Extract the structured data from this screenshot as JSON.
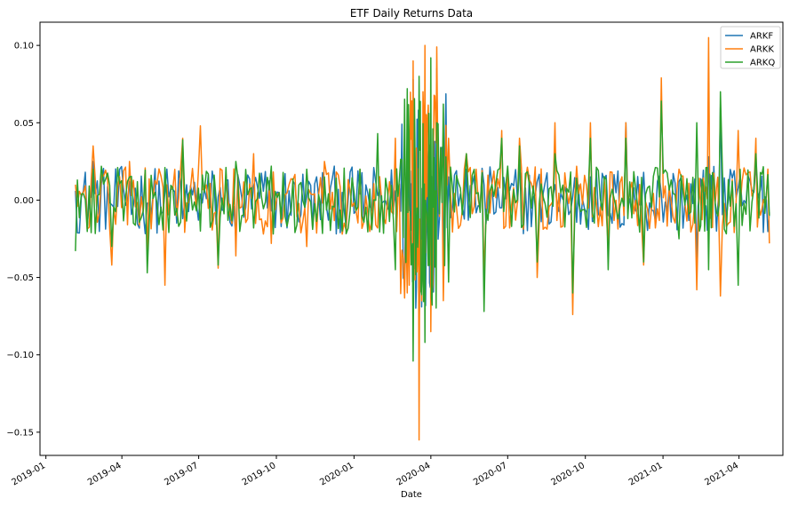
{
  "chart_data": {
    "type": "line",
    "title": "ETF Daily Returns Data",
    "xlabel": "Date",
    "ylabel": "",
    "xlim": [
      "2018-12-25",
      "2021-05-23"
    ],
    "ylim": [
      -0.165,
      0.115
    ],
    "yticks": [
      0.1,
      0.05,
      0.0,
      -0.05,
      -0.1,
      -0.15
    ],
    "ytick_labels": [
      "0.10",
      "0.05",
      "0.00",
      "−0.05",
      "−0.10",
      "−0.15"
    ],
    "xticks": [
      "2019-01-01",
      "2019-04-01",
      "2019-07-01",
      "2019-10-01",
      "2020-01-01",
      "2020-04-01",
      "2020-07-01",
      "2020-10-01",
      "2021-01-01",
      "2021-04-01"
    ],
    "xtick_labels": [
      "2019-01",
      "2019-04",
      "2019-07",
      "2019-10",
      "2020-01",
      "2020-04",
      "2020-07",
      "2020-10",
      "2021-01",
      "2021-04"
    ],
    "legend_position": "top-right",
    "grid": false,
    "series": [
      {
        "name": "ARKF",
        "color": "#1f77b4",
        "x": [
          "2019-02-05",
          "2019-02-26",
          "2019-03-20",
          "2019-04-10",
          "2019-05-01",
          "2019-05-22",
          "2019-06-12",
          "2019-07-03",
          "2019-07-24",
          "2019-08-14",
          "2019-09-04",
          "2019-09-25",
          "2019-10-16",
          "2019-11-06",
          "2019-11-27",
          "2019-12-18",
          "2020-01-08",
          "2020-01-29",
          "2020-02-19",
          "2020-03-04",
          "2020-03-11",
          "2020-03-18",
          "2020-03-25",
          "2020-04-01",
          "2020-04-08",
          "2020-04-22",
          "2020-05-13",
          "2020-06-03",
          "2020-06-24",
          "2020-07-15",
          "2020-08-05",
          "2020-08-26",
          "2020-09-16",
          "2020-10-07",
          "2020-10-28",
          "2020-11-18",
          "2020-12-09",
          "2020-12-30",
          "2021-01-20",
          "2021-02-10",
          "2021-02-24",
          "2021-03-10",
          "2021-03-31",
          "2021-04-21",
          "2021-05-07"
        ],
        "y": [
          0.006,
          0.025,
          -0.003,
          0.012,
          -0.002,
          0.005,
          -0.012,
          0.004,
          0.002,
          -0.025,
          0.009,
          -0.007,
          0.006,
          0.002,
          0.009,
          0.005,
          0.004,
          0.003,
          0.006,
          -0.03,
          0.078,
          -0.08,
          0.06,
          -0.03,
          0.085,
          0.015,
          0.02,
          0.01,
          -0.005,
          0.02,
          0.012,
          0.01,
          0.002,
          0.015,
          -0.01,
          0.05,
          0.018,
          0.004,
          0.012,
          -0.04,
          0.028,
          0.06,
          0.008,
          0.025,
          -0.008
        ]
      },
      {
        "name": "ARKK",
        "color": "#ff7f0e",
        "x": [
          "2019-02-05",
          "2019-02-26",
          "2019-03-20",
          "2019-04-10",
          "2019-05-01",
          "2019-05-22",
          "2019-06-12",
          "2019-07-03",
          "2019-07-24",
          "2019-08-14",
          "2019-09-04",
          "2019-09-25",
          "2019-10-16",
          "2019-11-06",
          "2019-11-27",
          "2019-12-18",
          "2020-01-08",
          "2020-01-29",
          "2020-02-19",
          "2020-03-04",
          "2020-03-11",
          "2020-03-18",
          "2020-03-25",
          "2020-04-01",
          "2020-04-08",
          "2020-04-22",
          "2020-05-13",
          "2020-06-03",
          "2020-06-24",
          "2020-07-15",
          "2020-08-05",
          "2020-08-26",
          "2020-09-16",
          "2020-10-07",
          "2020-10-28",
          "2020-11-18",
          "2020-12-09",
          "2020-12-30",
          "2021-01-20",
          "2021-02-10",
          "2021-02-24",
          "2021-03-10",
          "2021-03-31",
          "2021-04-21",
          "2021-05-07"
        ],
        "y": [
          0.01,
          0.035,
          -0.042,
          0.025,
          -0.035,
          -0.055,
          0.04,
          0.048,
          -0.044,
          -0.036,
          0.03,
          -0.028,
          0.01,
          -0.03,
          0.025,
          -0.022,
          0.02,
          -0.018,
          0.04,
          -0.06,
          0.09,
          -0.155,
          0.1,
          -0.085,
          0.099,
          0.04,
          0.03,
          -0.05,
          0.045,
          0.04,
          -0.05,
          0.05,
          -0.074,
          0.05,
          -0.03,
          0.05,
          -0.042,
          0.079,
          0.02,
          -0.058,
          0.105,
          -0.062,
          0.045,
          0.04,
          -0.028
        ]
      },
      {
        "name": "ARKQ",
        "color": "#2ca02c",
        "x": [
          "2019-02-05",
          "2019-02-26",
          "2019-03-20",
          "2019-04-10",
          "2019-05-01",
          "2019-05-22",
          "2019-06-12",
          "2019-07-03",
          "2019-07-24",
          "2019-08-14",
          "2019-09-04",
          "2019-09-25",
          "2019-10-16",
          "2019-11-06",
          "2019-11-27",
          "2019-12-18",
          "2020-01-08",
          "2020-01-29",
          "2020-02-19",
          "2020-03-04",
          "2020-03-11",
          "2020-03-18",
          "2020-03-25",
          "2020-04-01",
          "2020-04-08",
          "2020-04-22",
          "2020-05-13",
          "2020-06-03",
          "2020-06-24",
          "2020-07-15",
          "2020-08-05",
          "2020-08-26",
          "2020-09-16",
          "2020-10-07",
          "2020-10-28",
          "2020-11-18",
          "2020-12-09",
          "2020-12-30",
          "2021-01-20",
          "2021-02-10",
          "2021-02-24",
          "2021-03-10",
          "2021-03-31",
          "2021-04-21",
          "2021-05-07"
        ],
        "y": [
          -0.033,
          0.02,
          -0.03,
          0.015,
          -0.047,
          0.021,
          0.039,
          -0.02,
          -0.042,
          0.025,
          -0.018,
          0.022,
          -0.01,
          0.02,
          0.015,
          -0.02,
          0.02,
          0.043,
          -0.045,
          0.072,
          -0.104,
          0.08,
          -0.092,
          0.092,
          0.05,
          -0.053,
          0.03,
          -0.072,
          0.04,
          0.035,
          -0.04,
          0.03,
          -0.06,
          0.04,
          -0.045,
          0.04,
          -0.04,
          0.064,
          -0.025,
          0.05,
          -0.045,
          0.07,
          -0.055,
          0.03,
          -0.01
        ]
      }
    ]
  }
}
